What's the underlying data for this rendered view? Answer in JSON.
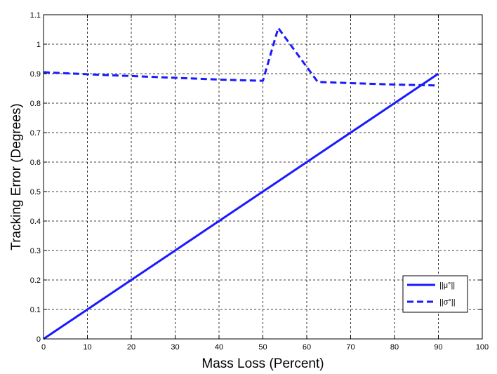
{
  "chart_data": {
    "type": "line",
    "title": "",
    "xlabel": "Mass Loss (Percent)",
    "ylabel": "Tracking Error (Degrees)",
    "xlim": [
      0,
      100
    ],
    "ylim": [
      0,
      1.1
    ],
    "xticks": [
      0,
      10,
      20,
      30,
      40,
      50,
      60,
      70,
      80,
      90,
      100
    ],
    "yticks": [
      0,
      0.1,
      0.2,
      0.3,
      0.4,
      0.5,
      0.6,
      0.7,
      0.8,
      0.9,
      1,
      1.1
    ],
    "grid": true,
    "legend_position": "bottom-right",
    "series": [
      {
        "name": "||μ°||",
        "style": "solid",
        "color": "#1a1aff",
        "x": [
          0,
          90
        ],
        "y": [
          0,
          0.9
        ]
      },
      {
        "name": "||σ°||",
        "style": "dashed",
        "color": "#1a1aff",
        "x": [
          0,
          10,
          20,
          30,
          40,
          50,
          53.5,
          62.5,
          70,
          80,
          90
        ],
        "y": [
          0.905,
          0.898,
          0.892,
          0.886,
          0.88,
          0.876,
          1.055,
          0.872,
          0.868,
          0.863,
          0.86
        ]
      }
    ]
  }
}
